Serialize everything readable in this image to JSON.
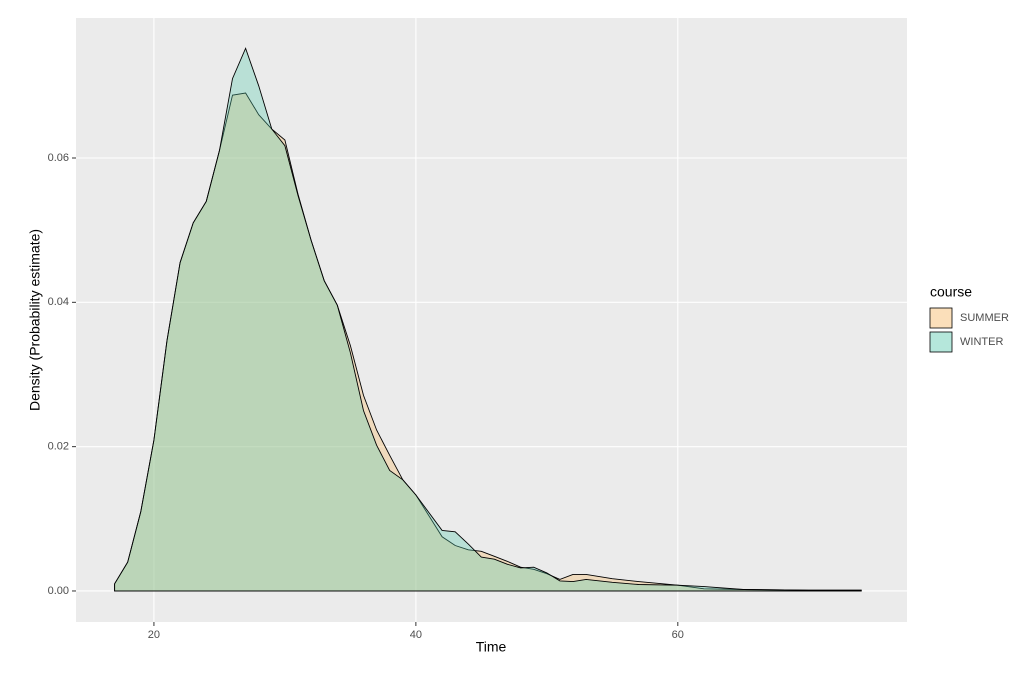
{
  "chart_data": {
    "type": "density",
    "x_label": "Time",
    "y_label": "Density (Probability estimate)",
    "legend_title": "course",
    "legend_position": "right",
    "grid": true,
    "x": [
      17,
      18,
      19,
      20,
      21,
      22,
      23,
      24,
      25,
      26,
      27,
      28,
      29,
      30,
      31,
      32,
      33,
      34,
      35,
      36,
      37,
      38,
      39,
      40,
      42,
      43,
      44,
      45,
      46,
      47,
      48,
      49,
      50,
      51,
      52,
      53,
      55,
      57,
      60,
      62,
      65,
      70,
      74
    ],
    "series": [
      {
        "name": "SUMMER",
        "color": "#f7b967",
        "values": [
          0.001,
          0.004,
          0.011,
          0.0209,
          0.0347,
          0.0455,
          0.051,
          0.054,
          0.061,
          0.0687,
          0.069,
          0.066,
          0.064,
          0.0625,
          0.055,
          0.0486,
          0.043,
          0.0396,
          0.034,
          0.0271,
          0.0223,
          0.0188,
          0.0154,
          0.0133,
          0.0075,
          0.0063,
          0.0057,
          0.0055,
          0.0048,
          0.0041,
          0.0033,
          0.003,
          0.0024,
          0.0016,
          0.0023,
          0.0023,
          0.0017,
          0.0013,
          0.0008,
          0.0003,
          0.0002,
          0.0001,
          0.0001
        ]
      },
      {
        "name": "WINTER",
        "color": "#5ccab0",
        "values": [
          0.001,
          0.004,
          0.011,
          0.0209,
          0.0347,
          0.0455,
          0.051,
          0.054,
          0.061,
          0.071,
          0.0752,
          0.07,
          0.064,
          0.0617,
          0.0548,
          0.0486,
          0.043,
          0.0396,
          0.033,
          0.025,
          0.0202,
          0.0167,
          0.0154,
          0.0133,
          0.0084,
          0.0082,
          0.0065,
          0.0047,
          0.0044,
          0.0037,
          0.0032,
          0.0033,
          0.0025,
          0.0014,
          0.0013,
          0.0016,
          0.0012,
          0.0009,
          0.0008,
          0.0006,
          0.0002,
          0.0001,
          0.0001
        ]
      }
    ],
    "xlim": [
      14.05,
      77.5
    ],
    "xticks": [
      20,
      40,
      60
    ],
    "ylim": [
      -0.0043,
      0.0794
    ],
    "yticks": [
      {
        "value": 0,
        "label": "0.00"
      },
      {
        "value": 0.02,
        "label": "0.02"
      },
      {
        "value": 0.04,
        "label": "0.04"
      },
      {
        "value": 0.06,
        "label": "0.06"
      }
    ]
  }
}
